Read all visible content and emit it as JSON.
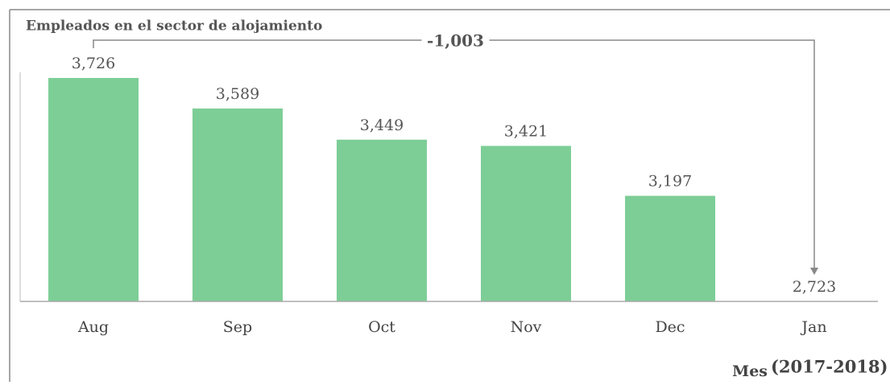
{
  "chart_data": {
    "type": "bar",
    "title": "Empleados en el sector de alojamiento",
    "categories": [
      "Aug",
      "Sep",
      "Oct",
      "Nov",
      "Dec",
      "Jan"
    ],
    "values": [
      3726,
      3589,
      3449,
      3421,
      3197,
      2723
    ],
    "value_labels": [
      "3,726",
      "3,589",
      "3,449",
      "3,421",
      "3,197",
      "2,723"
    ],
    "color": "#7dce96",
    "ylim": [
      2723,
      3726
    ],
    "annotation": "-1,003",
    "x_label": "Mes",
    "x_label_note": "(2017-2018)"
  }
}
